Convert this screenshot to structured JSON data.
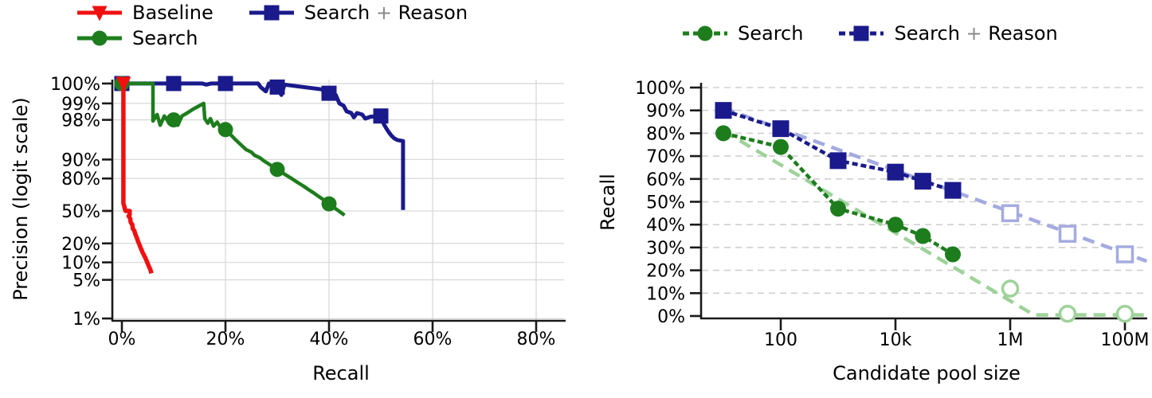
{
  "figure": {
    "background": "#ffffff"
  },
  "palette": {
    "red": "#f01010",
    "green": "#1d7d1d",
    "navy": "#1a1a8c",
    "light_green": "#9ed29a",
    "light_blue": "#a5abdf",
    "grid": "#d9d9d9",
    "axis": "#1a1a1a",
    "text": "#000000"
  },
  "chart_data": [
    {
      "type": "line",
      "title": "",
      "xlabel": "Recall",
      "ylabel": "Precision (logit scale)",
      "x_scale": "linear",
      "y_scale": "logit",
      "xlim": [
        0,
        85
      ],
      "ylim_pct": [
        1,
        100
      ],
      "grid": true,
      "x_ticks": [
        {
          "v": 0,
          "label": "0%"
        },
        {
          "v": 20,
          "label": "20%"
        },
        {
          "v": 40,
          "label": "40%"
        },
        {
          "v": 60,
          "label": "60%"
        },
        {
          "v": 80,
          "label": "80%"
        }
      ],
      "y_ticks": [
        {
          "v": 100,
          "label": "100%"
        },
        {
          "v": 99,
          "label": "99%"
        },
        {
          "v": 98,
          "label": "98%"
        },
        {
          "v": 90,
          "label": "90%"
        },
        {
          "v": 80,
          "label": "80%"
        },
        {
          "v": 50,
          "label": "50%"
        },
        {
          "v": 20,
          "label": "20%"
        },
        {
          "v": 10,
          "label": "10%"
        },
        {
          "v": 5,
          "label": "5%"
        },
        {
          "v": 1,
          "label": "1%"
        }
      ],
      "legend_rows": [
        [
          "Baseline",
          "Search + Reason"
        ],
        [
          "Search"
        ]
      ],
      "series": [
        {
          "name": "Search + Reason",
          "color_key": "navy",
          "marker": "square",
          "line_width": 5,
          "line": [
            [
              0,
              100
            ],
            [
              15.2,
              100
            ],
            [
              15.5,
              99.65
            ],
            [
              16.3,
              99.55
            ],
            [
              17.2,
              99.9
            ],
            [
              26.3,
              99.9
            ],
            [
              26.8,
              99.5
            ],
            [
              27.8,
              99.4
            ],
            [
              28.4,
              99.7
            ],
            [
              29.3,
              99.55
            ],
            [
              30,
              99.5
            ],
            [
              30.8,
              99.3
            ],
            [
              31.4,
              99.55
            ],
            [
              38.5,
              99.45
            ],
            [
              40,
              99.35
            ],
            [
              41.3,
              99.3
            ],
            [
              42,
              99.0
            ],
            [
              42.8,
              98.9
            ],
            [
              43.4,
              98.6
            ],
            [
              44.3,
              98.5
            ],
            [
              44.8,
              98.2
            ],
            [
              45.4,
              98.5
            ],
            [
              46.4,
              98.4
            ],
            [
              47,
              98.1
            ],
            [
              48,
              98.25
            ],
            [
              50,
              98.3
            ],
            [
              50.6,
              97.6
            ],
            [
              51.1,
              97.1
            ],
            [
              51.6,
              96.6
            ],
            [
              52.1,
              96.1
            ],
            [
              52.6,
              95.7
            ],
            [
              53.2,
              95.4
            ],
            [
              54.3,
              95.2
            ],
            [
              54.3,
              51
            ]
          ],
          "markers": [
            [
              0,
              100
            ],
            [
              10,
              100
            ],
            [
              20,
              99.9
            ],
            [
              30,
              99.5
            ],
            [
              40,
              99.35
            ],
            [
              50,
              98.3
            ]
          ]
        },
        {
          "name": "Search",
          "color_key": "green",
          "marker": "circle",
          "line_width": 4.5,
          "line": [
            [
              0,
              100
            ],
            [
              6,
              100
            ],
            [
              6,
              97.9
            ],
            [
              6.8,
              98.4
            ],
            [
              7.4,
              97.5
            ],
            [
              8.2,
              98.3
            ],
            [
              9,
              97.8
            ],
            [
              10,
              98
            ],
            [
              10.8,
              97.5
            ],
            [
              11.6,
              98.3
            ],
            [
              12.6,
              98.5
            ],
            [
              13.6,
              98.7
            ],
            [
              14.6,
              98.85
            ],
            [
              15.8,
              99
            ],
            [
              16,
              98.1
            ],
            [
              16.6,
              97.7
            ],
            [
              17.1,
              98.1
            ],
            [
              17.7,
              97.4
            ],
            [
              18.4,
              97.8
            ],
            [
              19.2,
              97.1
            ],
            [
              20,
              97
            ],
            [
              21,
              96.3
            ],
            [
              22,
              95.4
            ],
            [
              23,
              94.4
            ],
            [
              24,
              93.2
            ],
            [
              25,
              92.5
            ],
            [
              25.6,
              91.5
            ],
            [
              26.6,
              90.7
            ],
            [
              27.6,
              89.2
            ],
            [
              28.6,
              87.8
            ],
            [
              30,
              85.5
            ],
            [
              31,
              83.6
            ],
            [
              32,
              81.6
            ],
            [
              33,
              79.5
            ],
            [
              34,
              77
            ],
            [
              35,
              74.5
            ],
            [
              36,
              71.5
            ],
            [
              37,
              68.5
            ],
            [
              38,
              65
            ],
            [
              39,
              61.5
            ],
            [
              40,
              57.5
            ],
            [
              41,
              53.5
            ],
            [
              42,
              49.5
            ],
            [
              43,
              45.5
            ]
          ],
          "markers": [
            [
              0,
              100
            ],
            [
              10,
              98
            ],
            [
              20,
              97
            ],
            [
              30,
              85.5
            ],
            [
              40,
              57.5
            ]
          ]
        },
        {
          "name": "Baseline",
          "color_key": "red",
          "marker": "triangle-down",
          "line_width": 5.5,
          "line": [
            [
              0.3,
              100
            ],
            [
              0.3,
              58
            ],
            [
              0.5,
              54
            ],
            [
              0.6,
              51.5
            ],
            [
              0.7,
              50
            ],
            [
              1.5,
              50
            ],
            [
              1.5,
              46
            ],
            [
              1.3,
              44.5
            ],
            [
              1.6,
              42
            ],
            [
              1.7,
              38
            ],
            [
              2.0,
              36
            ],
            [
              2.1,
              32
            ],
            [
              2.4,
              30
            ],
            [
              2.6,
              27
            ],
            [
              2.9,
              24
            ],
            [
              3.1,
              21.5
            ],
            [
              3.4,
              19
            ],
            [
              3.7,
              16.5
            ],
            [
              4.0,
              14.5
            ],
            [
              4.3,
              13
            ],
            [
              4.6,
              11.5
            ],
            [
              4.9,
              10
            ],
            [
              5.2,
              8.6
            ],
            [
              5.5,
              7.5
            ],
            [
              5.7,
              6.5
            ]
          ],
          "markers": [
            [
              0.3,
              100
            ]
          ]
        }
      ]
    },
    {
      "type": "line",
      "title": "",
      "xlabel": "Candidate pool size",
      "ylabel": "Recall",
      "x_scale": "log",
      "y_scale": "linear",
      "ylim_pct": [
        0,
        100
      ],
      "grid": true,
      "x_ticks": [
        {
          "v": 100,
          "label": "100"
        },
        {
          "v": 10000,
          "label": "10k"
        },
        {
          "v": 1000000,
          "label": "1M"
        },
        {
          "v": 100000000,
          "label": "100M"
        }
      ],
      "y_ticks": [
        {
          "v": 100,
          "label": "100%"
        },
        {
          "v": 90,
          "label": "90%"
        },
        {
          "v": 80,
          "label": "80%"
        },
        {
          "v": 70,
          "label": "70%"
        },
        {
          "v": 60,
          "label": "60%"
        },
        {
          "v": 50,
          "label": "50%"
        },
        {
          "v": 40,
          "label": "40%"
        },
        {
          "v": 30,
          "label": "30%"
        },
        {
          "v": 20,
          "label": "20%"
        },
        {
          "v": 10,
          "label": "10%"
        },
        {
          "v": 0,
          "label": "0%"
        }
      ],
      "legend_rows": [
        [
          "Search",
          "Search + Reason"
        ]
      ],
      "series": [
        {
          "name": "Search",
          "color_key": "green",
          "light_key": "light_green",
          "marker": "circle",
          "measured": [
            [
              10,
              80
            ],
            [
              100,
              74
            ],
            [
              1000,
              47
            ],
            [
              10000,
              40
            ],
            [
              30000,
              35
            ],
            [
              100000,
              27
            ]
          ],
          "extrapolated": [
            [
              1000000,
              12
            ],
            [
              10000000,
              1
            ],
            [
              100000000,
              1
            ]
          ],
          "trend": [
            [
              10,
              81
            ],
            [
              2600000,
              0.5
            ],
            [
              240000000,
              0.5
            ]
          ]
        },
        {
          "name": "Search + Reason",
          "color_key": "navy",
          "light_key": "light_blue",
          "marker": "square",
          "measured": [
            [
              10,
              90
            ],
            [
              100,
              82
            ],
            [
              1000,
              68
            ],
            [
              10000,
              63
            ],
            [
              30000,
              59
            ],
            [
              100000,
              55
            ]
          ],
          "extrapolated": [
            [
              1000000,
              45
            ],
            [
              10000000,
              36
            ],
            [
              100000000,
              27
            ]
          ],
          "trend": [
            [
              10,
              91
            ],
            [
              240000000,
              24
            ]
          ]
        }
      ]
    }
  ]
}
